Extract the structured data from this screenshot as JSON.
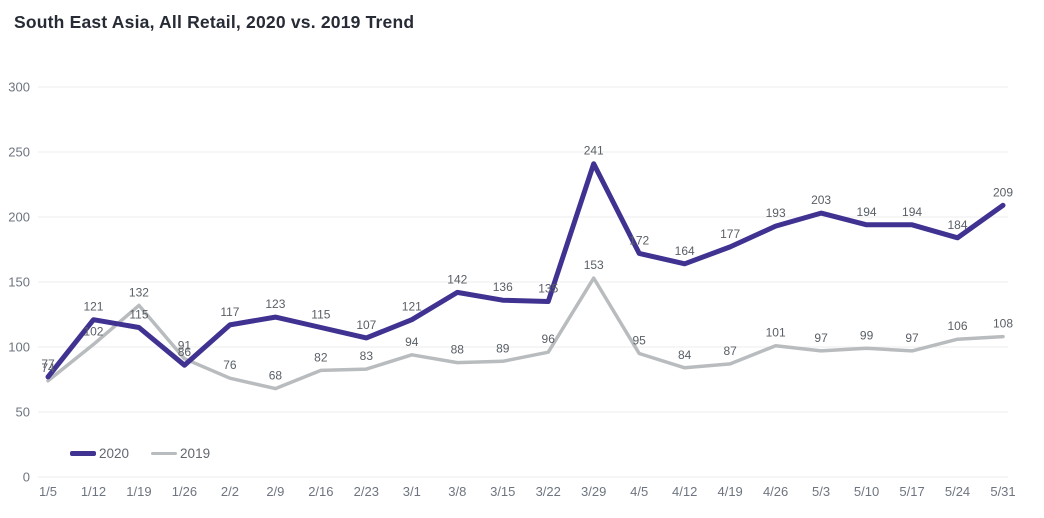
{
  "title": "South East Asia, All Retail, 2020 vs. 2019 Trend",
  "colors": {
    "series_2020": "#3f3291",
    "series_2019": "#b9bcbe",
    "grid": "#efedec",
    "axis_text": "#6e7580",
    "label_text": "#595f66",
    "title_text": "#262b35",
    "background": "#ffffff"
  },
  "legend": [
    {
      "label": "2020",
      "color": "#3f3291"
    },
    {
      "label": "2019",
      "color": "#b9bcbe"
    }
  ],
  "chart_data": {
    "type": "line",
    "title": "South East Asia, All Retail, 2020 vs. 2019 Trend",
    "x": [
      "1/5",
      "1/12",
      "1/19",
      "1/26",
      "2/2",
      "2/9",
      "2/16",
      "2/23",
      "3/1",
      "3/8",
      "3/15",
      "3/22",
      "3/29",
      "4/5",
      "4/12",
      "4/19",
      "4/26",
      "5/3",
      "5/10",
      "5/17",
      "5/24",
      "5/31"
    ],
    "series": [
      {
        "name": "2020",
        "color": "#3f3291",
        "values": [
          77,
          121,
          115,
          86,
          117,
          123,
          115,
          107,
          121,
          142,
          136,
          135,
          241,
          172,
          164,
          177,
          193,
          203,
          194,
          194,
          184,
          209
        ]
      },
      {
        "name": "2019",
        "color": "#b9bcbe",
        "values": [
          74,
          102,
          132,
          91,
          76,
          68,
          82,
          83,
          94,
          88,
          89,
          96,
          153,
          95,
          84,
          87,
          101,
          97,
          99,
          97,
          106,
          108
        ]
      }
    ],
    "xlabel": "",
    "ylabel": "",
    "ylim": [
      0,
      300
    ],
    "yticks": [
      0,
      50,
      100,
      150,
      200,
      250,
      300
    ],
    "grid": true,
    "data_labels": true,
    "legend_position": "bottom-left"
  }
}
